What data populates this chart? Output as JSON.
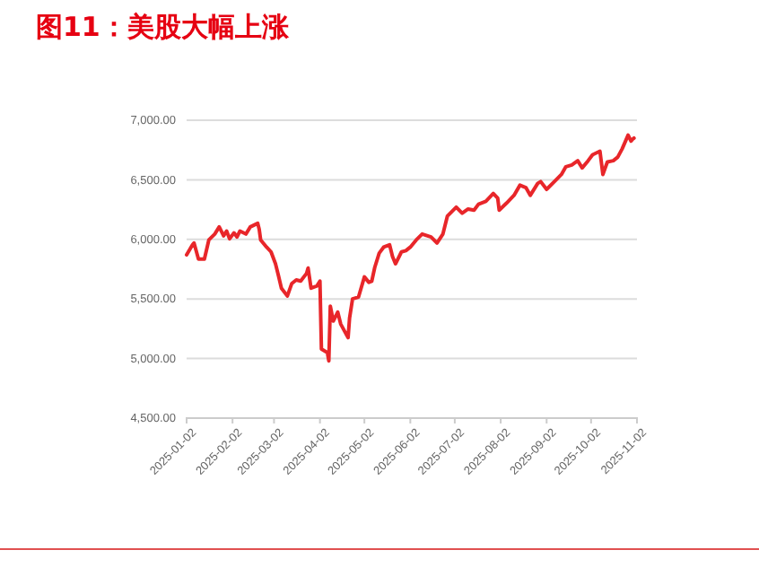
{
  "chart_data": {
    "type": "line",
    "title": "图11：美股大幅上涨",
    "x": [
      "2025-01-02",
      "2025-01-06",
      "2025-01-07",
      "2025-01-10",
      "2025-01-14",
      "2025-01-17",
      "2025-01-21",
      "2025-01-24",
      "2025-01-27",
      "2025-01-29",
      "2025-01-31",
      "2025-02-03",
      "2025-02-05",
      "2025-02-07",
      "2025-02-11",
      "2025-02-14",
      "2025-02-19",
      "2025-02-20",
      "2025-02-21",
      "2025-02-25",
      "2025-02-28",
      "2025-03-03",
      "2025-03-05",
      "2025-03-07",
      "2025-03-11",
      "2025-03-14",
      "2025-03-17",
      "2025-03-20",
      "2025-03-24",
      "2025-03-25",
      "2025-03-27",
      "2025-03-31",
      "2025-04-02",
      "2025-04-03",
      "2025-04-07",
      "2025-04-08",
      "2025-04-09",
      "2025-04-11",
      "2025-04-14",
      "2025-04-16",
      "2025-04-21",
      "2025-04-22",
      "2025-04-24",
      "2025-04-28",
      "2025-05-02",
      "2025-05-05",
      "2025-05-07",
      "2025-05-09",
      "2025-05-12",
      "2025-05-15",
      "2025-05-19",
      "2025-05-21",
      "2025-05-23",
      "2025-05-27",
      "2025-05-30",
      "2025-06-02",
      "2025-06-06",
      "2025-06-10",
      "2025-06-16",
      "2025-06-20",
      "2025-06-24",
      "2025-06-27",
      "2025-07-03",
      "2025-07-07",
      "2025-07-11",
      "2025-07-15",
      "2025-07-18",
      "2025-07-23",
      "2025-07-28",
      "2025-07-31",
      "2025-08-01",
      "2025-08-06",
      "2025-08-11",
      "2025-08-15",
      "2025-08-19",
      "2025-08-22",
      "2025-08-27",
      "2025-08-29",
      "2025-09-02",
      "2025-09-08",
      "2025-09-12",
      "2025-09-15",
      "2025-09-19",
      "2025-09-23",
      "2025-09-26",
      "2025-09-30",
      "2025-10-03",
      "2025-10-08",
      "2025-10-10",
      "2025-10-13",
      "2025-10-17",
      "2025-10-20",
      "2025-10-23",
      "2025-10-27",
      "2025-10-29",
      "2025-10-30",
      "2025-10-31"
    ],
    "series": [
      {
        "color": "#e8262a",
        "values": [
          5870,
          5955,
          5970,
          5835,
          5835,
          5995,
          6045,
          6105,
          6030,
          6070,
          6005,
          6055,
          6020,
          6070,
          6045,
          6105,
          6135,
          6085,
          5995,
          5935,
          5895,
          5795,
          5695,
          5590,
          5525,
          5630,
          5660,
          5650,
          5715,
          5760,
          5590,
          5610,
          5650,
          5080,
          5050,
          4980,
          5440,
          5315,
          5390,
          5290,
          5175,
          5340,
          5500,
          5515,
          5685,
          5640,
          5650,
          5765,
          5885,
          5935,
          5955,
          5855,
          5795,
          5895,
          5905,
          5935,
          5995,
          6045,
          6020,
          5970,
          6045,
          6195,
          6270,
          6220,
          6255,
          6245,
          6295,
          6320,
          6385,
          6345,
          6245,
          6305,
          6370,
          6455,
          6435,
          6370,
          6470,
          6485,
          6420,
          6495,
          6545,
          6610,
          6625,
          6660,
          6600,
          6660,
          6710,
          6740,
          6545,
          6650,
          6660,
          6690,
          6760,
          6875,
          6825,
          6840,
          6850
        ]
      }
    ],
    "xlim": [
      "2025-01-02",
      "2025-11-02"
    ],
    "xticks": [
      "2025-01-02",
      "2025-02-02",
      "2025-03-02",
      "2025-04-02",
      "2025-05-02",
      "2025-06-02",
      "2025-07-02",
      "2025-08-02",
      "2025-09-02",
      "2025-10-02",
      "2025-11-02"
    ],
    "ylim": [
      4500,
      7000
    ],
    "yticks": [
      {
        "value": 4500,
        "label": "4,500.00"
      },
      {
        "value": 5000,
        "label": "5,000.00"
      },
      {
        "value": 5500,
        "label": "5,500.00"
      },
      {
        "value": 6000,
        "label": "6,000.00"
      },
      {
        "value": 6500,
        "label": "6,500.00"
      },
      {
        "value": 7000,
        "label": "7,000.00"
      }
    ],
    "grid": "y",
    "marker": "none",
    "line_style": "solid"
  }
}
